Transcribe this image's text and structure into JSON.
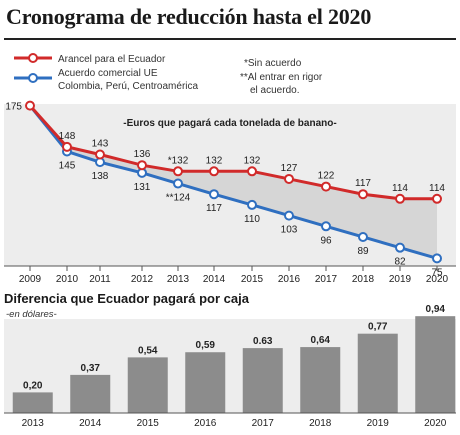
{
  "title": "Cronograma de reducción hasta el 2020",
  "chart_data": [
    {
      "type": "line",
      "subtitle": "-Euros que pagará cada tonelada de banano-",
      "x": [
        "2009",
        "2010",
        "2011",
        "2012",
        "2013",
        "2014",
        "2015",
        "2016",
        "2017",
        "2018",
        "2019",
        "2020"
      ],
      "ylim": [
        70,
        180
      ],
      "series": [
        {
          "name": "Arancel para el Ecuador",
          "color": "#d12a2a",
          "values": [
            175,
            148,
            143,
            136,
            132,
            132,
            132,
            127,
            122,
            117,
            114,
            114
          ],
          "labels": [
            "175",
            "148",
            "143",
            "136",
            "*132",
            "132",
            "132",
            "127",
            "122",
            "117",
            "114",
            "114"
          ]
        },
        {
          "name": "Acuerdo comercial UE Colombia, Perú, Centroamérica",
          "color": "#2f6fc0",
          "values": [
            175,
            145,
            138,
            131,
            124,
            117,
            110,
            103,
            96,
            89,
            82,
            75
          ],
          "labels": [
            "",
            "145",
            "138",
            "131",
            "**124",
            "117",
            "110",
            "103",
            "96",
            "89",
            "82",
            "75"
          ]
        }
      ],
      "legend_names": [
        "Arancel para el Ecuador",
        "Acuerdo comercial UE",
        "Colombia, Perú, Centroamérica"
      ],
      "notes": [
        "*Sin acuerdo",
        "**Al entrar en rigor",
        "el acuerdo."
      ]
    },
    {
      "type": "bar",
      "title": "Diferencia que Ecuador pagará por caja",
      "unit_label": "-en dólares-",
      "categories": [
        "2013",
        "2014",
        "2015",
        "2016",
        "2017",
        "2018",
        "2019",
        "2020"
      ],
      "values": [
        0.2,
        0.37,
        0.54,
        0.59,
        0.63,
        0.64,
        0.77,
        0.94
      ],
      "value_labels": [
        "0,20",
        "0,37",
        "0,54",
        "0,59",
        "0.63",
        "0,64",
        "0,77",
        "0,94"
      ],
      "ylim": [
        0,
        1.0
      ],
      "color": "#8c8c8c"
    }
  ]
}
